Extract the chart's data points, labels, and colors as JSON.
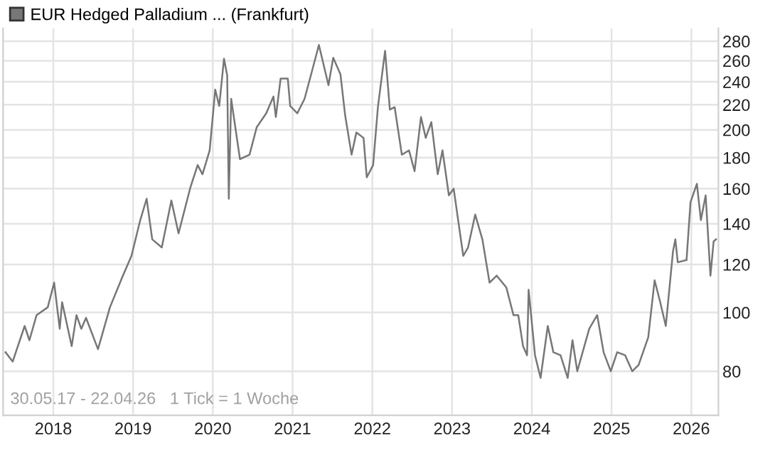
{
  "chart_data": {
    "type": "line",
    "log": "y",
    "grid": true,
    "legend": "top left",
    "marker": "none",
    "line_style": "solid",
    "xlim": [
      2017.37,
      2026.34
    ],
    "xticks": [
      2018,
      2019,
      2020,
      2021,
      2022,
      2023,
      2024,
      2025,
      2026
    ],
    "ylim": [
      67.7,
      294
    ],
    "yticks": [
      80,
      100,
      120,
      140,
      160,
      180,
      200,
      220,
      240,
      260,
      280
    ],
    "annotations": [
      "30.05.17 - 22.04.26   1 Tick = 1 Woche"
    ],
    "series": [
      {
        "name": "EUR Hedged Palladium ... (Frankfurt)",
        "color": "#777777",
        "x": [
          2017.4,
          2017.49,
          2017.64,
          2017.7,
          2017.79,
          2017.93,
          2018.01,
          2018.08,
          2018.11,
          2018.23,
          2018.29,
          2018.35,
          2018.41,
          2018.56,
          2018.71,
          2018.86,
          2018.98,
          2019.09,
          2019.17,
          2019.24,
          2019.36,
          2019.48,
          2019.57,
          2019.72,
          2019.81,
          2019.87,
          2019.96,
          2020.03,
          2020.08,
          2020.14,
          2020.18,
          2020.2,
          2020.23,
          2020.34,
          2020.46,
          2020.55,
          2020.67,
          2020.76,
          2020.79,
          2020.85,
          2020.94,
          2020.97,
          2021.06,
          2021.15,
          2021.24,
          2021.33,
          2021.45,
          2021.51,
          2021.6,
          2021.66,
          2021.74,
          2021.8,
          2021.89,
          2021.93,
          2022.01,
          2022.07,
          2022.16,
          2022.22,
          2022.28,
          2022.37,
          2022.46,
          2022.53,
          2022.61,
          2022.67,
          2022.74,
          2022.82,
          2022.88,
          2022.96,
          2023.02,
          2023.14,
          2023.2,
          2023.29,
          2023.38,
          2023.47,
          2023.56,
          2023.68,
          2023.77,
          2023.83,
          2023.89,
          2023.94,
          2023.96,
          2024.04,
          2024.11,
          2024.2,
          2024.27,
          2024.36,
          2024.45,
          2024.51,
          2024.57,
          2024.72,
          2024.82,
          2024.9,
          2024.99,
          2025.07,
          2025.17,
          2025.26,
          2025.34,
          2025.46,
          2025.54,
          2025.61,
          2025.68,
          2025.77,
          2025.8,
          2025.83,
          2025.94,
          2025.99,
          2026.07,
          2026.12,
          2026.18,
          2026.24,
          2026.28,
          2026.31
        ],
        "values": [
          86,
          83,
          95,
          90,
          99,
          102,
          112,
          94,
          104,
          88,
          99,
          94,
          98,
          87,
          102,
          114,
          124,
          142,
          154,
          132,
          128,
          153,
          135,
          161,
          175,
          169,
          185,
          233,
          219,
          262,
          246,
          154,
          225,
          179,
          182,
          202,
          213,
          227,
          210,
          243,
          243,
          219,
          213,
          225,
          249,
          276,
          237,
          263,
          247,
          211,
          182,
          198,
          194,
          167,
          175,
          218,
          270,
          216,
          218,
          182,
          185,
          171,
          210,
          194,
          206,
          169,
          185,
          156,
          160,
          124,
          128,
          145,
          132,
          112,
          115,
          110,
          99,
          99,
          88,
          85,
          109,
          85,
          78,
          95,
          86,
          85,
          78,
          90,
          80,
          94,
          99,
          86,
          80,
          86,
          85,
          80,
          82,
          91,
          113,
          104,
          95,
          126,
          132,
          121,
          122,
          152,
          163,
          142,
          156,
          115,
          131,
          132
        ]
      }
    ]
  }
}
